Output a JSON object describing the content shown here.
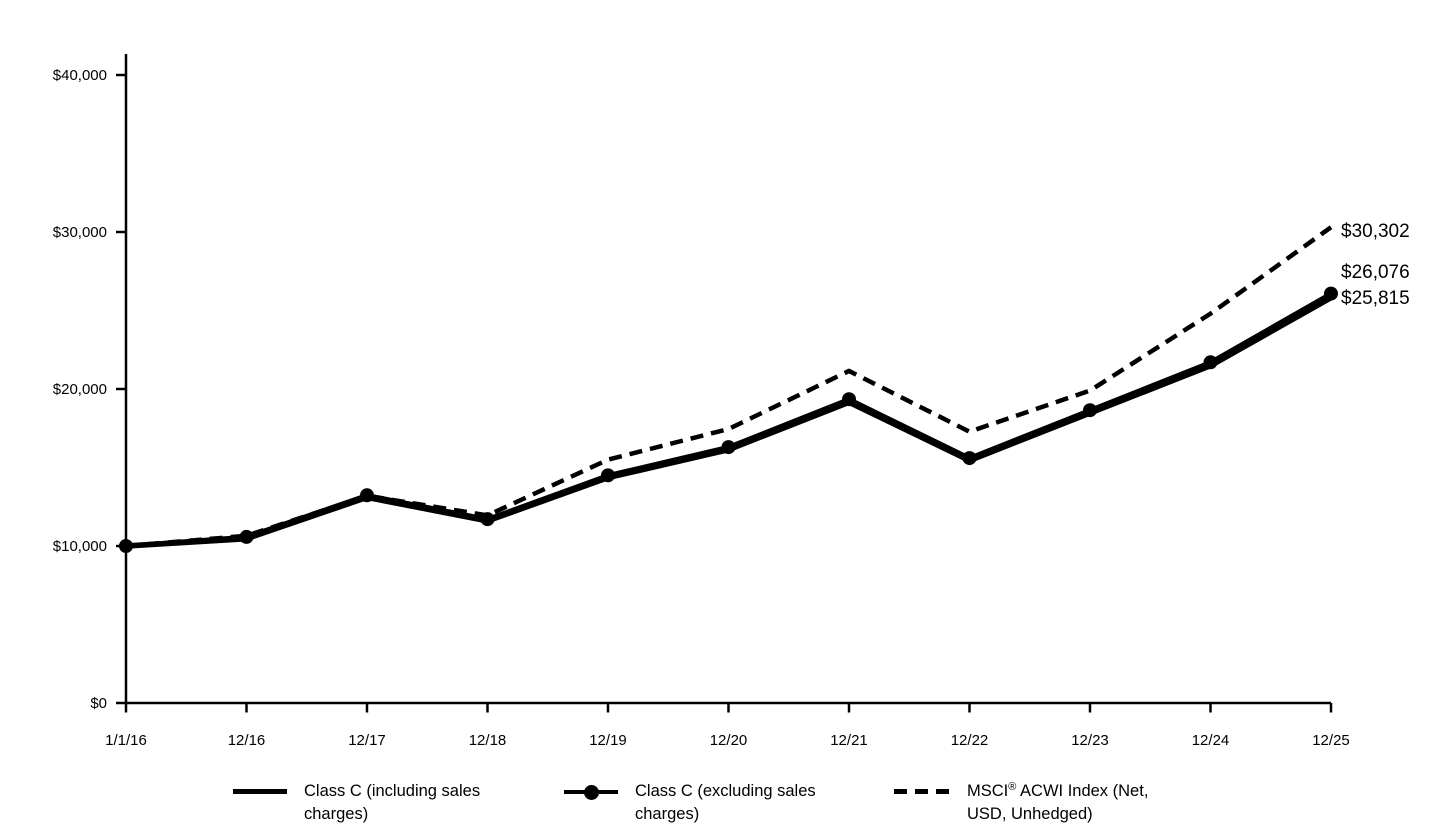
{
  "chart_data": {
    "type": "line",
    "title": "",
    "xlabel": "",
    "ylabel": "",
    "categories": [
      "1/1/16",
      "12/16",
      "12/17",
      "12/18",
      "12/19",
      "12/20",
      "12/21",
      "12/22",
      "12/23",
      "12/24",
      "12/25"
    ],
    "y_ticks": [
      {
        "value": 0,
        "label": "$0"
      },
      {
        "value": 10000,
        "label": "$10,000"
      },
      {
        "value": 20000,
        "label": "$20,000"
      },
      {
        "value": 30000,
        "label": "$30,000"
      },
      {
        "value": 40000,
        "label": "$40,000"
      }
    ],
    "ylim": [
      0,
      40000
    ],
    "grid": false,
    "legend_position": "bottom",
    "series": [
      {
        "name": "Class C (including sales charges)",
        "line_style": "solid-thick",
        "marker": false,
        "values": [
          10000,
          10465,
          13095,
          11595,
          14355,
          16135,
          19155,
          15445,
          18465,
          21485,
          25815
        ],
        "end_label": "$25,815",
        "end_label_dy": 0
      },
      {
        "name": "Class C (excluding sales charges)",
        "line_style": "solid-marker",
        "marker": true,
        "values": [
          10000,
          10580,
          13230,
          11710,
          14500,
          16300,
          19350,
          15600,
          18650,
          21700,
          26076
        ],
        "end_label": "$26,076",
        "end_label_dy": -22
      },
      {
        "name": "MSCI® ACWI Index (Net, USD, Unhedged)",
        "line_style": "dashed",
        "marker": false,
        "values": [
          10000,
          10650,
          13200,
          11950,
          15500,
          17450,
          21150,
          17280,
          19900,
          24800,
          30302
        ],
        "end_label": "$30,302",
        "end_label_dy": 3
      }
    ],
    "colors": {
      "line": "#000000",
      "background": "#ffffff"
    }
  },
  "legend": {
    "items": [
      {
        "l1a": "Class C (including sales",
        "l1sup": "",
        "l1b": "",
        "l2": "charges)"
      },
      {
        "l1a": "Class C (excluding sales",
        "l1sup": "",
        "l1b": "",
        "l2": "charges)"
      },
      {
        "l1a": "MSCI",
        "l1sup": "®",
        "l1b": " ACWI Index (Net,",
        "l2": "USD, Unhedged)"
      }
    ]
  }
}
